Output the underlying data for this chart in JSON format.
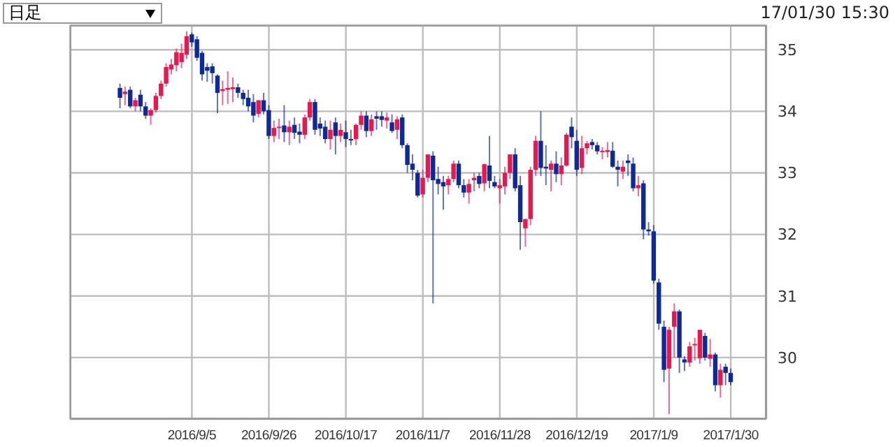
{
  "chart_data": {
    "type": "candlestick",
    "annotations": [
      "日足",
      "17/01/30 15:30"
    ],
    "categories": [
      null,
      null,
      null,
      null,
      null,
      null,
      null,
      null,
      null,
      null,
      null,
      null,
      null,
      null,
      "2016/9/5",
      null,
      null,
      null,
      null,
      null,
      null,
      null,
      null,
      null,
      null,
      null,
      null,
      null,
      null,
      "2016/9/26",
      null,
      null,
      null,
      null,
      null,
      null,
      null,
      null,
      null,
      null,
      null,
      null,
      null,
      null,
      "2016/10/17",
      null,
      null,
      null,
      null,
      null,
      null,
      null,
      null,
      null,
      null,
      null,
      null,
      null,
      null,
      "2016/11/7",
      null,
      null,
      null,
      null,
      null,
      null,
      null,
      null,
      null,
      null,
      null,
      null,
      null,
      null,
      "2016/11/28",
      null,
      null,
      null,
      null,
      null,
      null,
      null,
      null,
      null,
      null,
      null,
      null,
      null,
      null,
      "2016/12/19",
      null,
      null,
      null,
      null,
      null,
      null,
      null,
      null,
      null,
      null,
      null,
      null,
      null,
      null,
      "2017/1/9",
      null,
      null,
      null,
      null,
      null,
      null,
      null,
      null,
      null,
      null,
      null,
      null,
      null,
      null,
      "2017/1/30"
    ],
    "ohlc": [
      [
        34.38,
        34.45,
        34.05,
        34.22
      ],
      [
        34.28,
        34.4,
        34.1,
        34.32
      ],
      [
        34.35,
        34.4,
        34.05,
        34.08
      ],
      [
        34.08,
        34.22,
        34.0,
        34.18
      ],
      [
        34.27,
        34.35,
        34.0,
        34.08
      ],
      [
        34.08,
        34.15,
        33.88,
        33.93
      ],
      [
        33.93,
        34.05,
        33.78,
        34.02
      ],
      [
        34.02,
        34.3,
        33.98,
        34.25
      ],
      [
        34.25,
        34.5,
        34.2,
        34.45
      ],
      [
        34.45,
        34.78,
        34.4,
        34.72
      ],
      [
        34.68,
        34.85,
        34.6,
        34.76
      ],
      [
        34.75,
        35.02,
        34.65,
        34.96
      ],
      [
        34.8,
        35.1,
        34.7,
        34.95
      ],
      [
        34.92,
        35.3,
        34.85,
        35.22
      ],
      [
        35.25,
        35.28,
        35.05,
        35.12
      ],
      [
        35.17,
        35.22,
        34.82,
        34.87
      ],
      [
        34.95,
        34.98,
        34.5,
        34.6
      ],
      [
        34.72,
        34.78,
        34.48,
        34.66
      ],
      [
        34.73,
        34.78,
        34.45,
        34.62
      ],
      [
        34.58,
        34.6,
        33.97,
        34.3
      ],
      [
        34.33,
        34.5,
        34.1,
        34.36
      ],
      [
        34.35,
        34.65,
        34.12,
        34.38
      ],
      [
        34.36,
        34.55,
        34.15,
        34.39
      ],
      [
        34.39,
        34.45,
        34.22,
        34.3
      ],
      [
        34.3,
        34.35,
        34.1,
        34.2
      ],
      [
        34.22,
        34.35,
        34.0,
        34.08
      ],
      [
        34.15,
        34.28,
        33.82,
        33.93
      ],
      [
        33.96,
        34.18,
        33.9,
        34.18
      ],
      [
        34.18,
        34.3,
        33.95,
        34.0
      ],
      [
        34.02,
        34.1,
        33.55,
        33.6
      ],
      [
        33.6,
        33.85,
        33.5,
        33.73
      ],
      [
        33.73,
        33.88,
        33.55,
        33.75
      ],
      [
        33.77,
        34.1,
        33.5,
        33.66
      ],
      [
        33.66,
        33.85,
        33.45,
        33.75
      ],
      [
        33.78,
        33.9,
        33.55,
        33.65
      ],
      [
        33.67,
        33.8,
        33.48,
        33.62
      ],
      [
        33.62,
        33.95,
        33.55,
        33.9
      ],
      [
        33.9,
        34.2,
        33.85,
        34.15
      ],
      [
        34.15,
        34.2,
        33.62,
        33.7
      ],
      [
        33.8,
        33.9,
        33.6,
        33.72
      ],
      [
        33.75,
        33.85,
        33.48,
        33.55
      ],
      [
        33.55,
        33.85,
        33.38,
        33.7
      ],
      [
        33.82,
        33.9,
        33.3,
        33.6
      ],
      [
        33.6,
        33.8,
        33.5,
        33.7
      ],
      [
        33.66,
        33.85,
        33.42,
        33.55
      ],
      [
        33.55,
        33.7,
        33.45,
        33.53
      ],
      [
        33.55,
        33.8,
        33.45,
        33.78
      ],
      [
        33.78,
        34.0,
        33.7,
        33.93
      ],
      [
        33.93,
        34.0,
        33.58,
        33.68
      ],
      [
        33.68,
        33.95,
        33.6,
        33.87
      ],
      [
        33.92,
        34.0,
        33.7,
        33.88
      ],
      [
        33.92,
        34.0,
        33.75,
        33.86
      ],
      [
        33.85,
        33.98,
        33.72,
        33.9
      ],
      [
        33.82,
        33.95,
        33.65,
        33.68
      ],
      [
        33.7,
        33.92,
        33.55,
        33.87
      ],
      [
        33.9,
        33.95,
        33.4,
        33.45
      ],
      [
        33.45,
        33.48,
        33.0,
        33.13
      ],
      [
        33.15,
        33.3,
        32.88,
        33.05
      ],
      [
        33.0,
        33.05,
        32.6,
        32.63
      ],
      [
        32.65,
        33.05,
        32.6,
        32.92
      ],
      [
        32.92,
        33.3,
        32.85,
        33.3
      ],
      [
        33.28,
        33.35,
        30.88,
        32.88
      ],
      [
        32.9,
        33.1,
        32.65,
        32.82
      ],
      [
        32.85,
        32.95,
        32.4,
        32.78
      ],
      [
        32.8,
        32.95,
        32.65,
        32.9
      ],
      [
        32.9,
        33.2,
        32.85,
        33.15
      ],
      [
        33.15,
        33.2,
        32.75,
        32.8
      ],
      [
        32.8,
        32.9,
        32.6,
        32.68
      ],
      [
        32.68,
        32.9,
        32.5,
        32.82
      ],
      [
        32.88,
        33.0,
        32.7,
        32.92
      ],
      [
        32.95,
        33.0,
        32.75,
        32.82
      ],
      [
        32.83,
        33.15,
        32.7,
        33.14
      ],
      [
        33.12,
        33.6,
        32.75,
        32.87
      ],
      [
        32.85,
        32.95,
        32.75,
        32.78
      ],
      [
        32.75,
        32.9,
        32.5,
        32.8
      ],
      [
        32.78,
        33.1,
        32.65,
        33.0
      ],
      [
        33.0,
        33.3,
        32.9,
        33.3
      ],
      [
        33.3,
        33.4,
        32.7,
        32.75
      ],
      [
        32.8,
        32.95,
        31.75,
        32.2
      ],
      [
        32.1,
        32.25,
        31.8,
        32.25
      ],
      [
        32.25,
        33.1,
        32.15,
        33.05
      ],
      [
        33.05,
        33.6,
        32.95,
        33.52
      ],
      [
        33.52,
        34.0,
        32.95,
        33.08
      ],
      [
        33.1,
        33.45,
        32.8,
        33.07
      ],
      [
        33.05,
        33.2,
        32.7,
        33.15
      ],
      [
        33.15,
        33.35,
        32.85,
        32.98
      ],
      [
        32.98,
        33.25,
        32.8,
        33.12
      ],
      [
        33.12,
        33.65,
        33.1,
        33.62
      ],
      [
        33.75,
        33.9,
        33.4,
        33.58
      ],
      [
        33.52,
        33.7,
        32.95,
        33.05
      ],
      [
        33.08,
        33.6,
        32.98,
        33.4
      ],
      [
        33.4,
        33.52,
        33.3,
        33.48
      ],
      [
        33.5,
        33.55,
        33.38,
        33.45
      ],
      [
        33.45,
        33.5,
        33.3,
        33.35
      ],
      [
        33.35,
        33.42,
        33.22,
        33.36
      ],
      [
        33.34,
        33.5,
        33.25,
        33.37
      ],
      [
        33.36,
        33.5,
        33.08,
        33.1
      ],
      [
        33.1,
        33.2,
        32.78,
        33.05
      ],
      [
        33.02,
        33.2,
        32.9,
        33.1
      ],
      [
        33.2,
        33.3,
        32.95,
        33.16
      ],
      [
        33.15,
        33.25,
        32.7,
        32.75
      ],
      [
        32.75,
        32.95,
        32.62,
        32.8
      ],
      [
        32.83,
        32.88,
        31.92,
        32.08
      ],
      [
        32.08,
        32.2,
        31.98,
        32.05
      ],
      [
        32.05,
        32.15,
        31.2,
        31.25
      ],
      [
        31.22,
        31.28,
        30.45,
        30.55
      ],
      [
        30.5,
        30.6,
        29.6,
        29.8
      ],
      [
        29.82,
        30.5,
        29.08,
        30.45
      ],
      [
        30.5,
        30.88,
        30.0,
        30.75
      ],
      [
        30.75,
        30.78,
        29.75,
        30.0
      ],
      [
        29.97,
        30.02,
        29.78,
        29.92
      ],
      [
        29.92,
        30.25,
        29.85,
        30.18
      ],
      [
        30.2,
        30.32,
        29.95,
        30.22
      ],
      [
        29.99,
        30.45,
        29.9,
        30.45
      ],
      [
        30.35,
        30.4,
        29.95,
        30.0
      ],
      [
        29.98,
        30.3,
        29.85,
        30.05
      ],
      [
        30.05,
        30.08,
        29.45,
        29.55
      ],
      [
        29.55,
        29.9,
        29.35,
        29.8
      ],
      [
        29.85,
        29.9,
        29.55,
        29.75
      ],
      [
        29.75,
        29.82,
        29.55,
        29.6
      ]
    ],
    "colors": [
      "#0d2a96",
      "#e8174d",
      "#0d2a96",
      "#e8174d",
      "#0d2a96",
      "#0d2a96",
      "#e8174d",
      "#e8174d",
      "#e8174d",
      "#e8174d",
      "#e8174d",
      "#e8174d",
      "#e8174d",
      "#e8174d",
      "#0d2a96",
      "#0d2a96",
      "#0d2a96",
      "#0d2a96",
      "#0d2a96",
      "#0d2a96",
      "#e8174d",
      "#e8174d",
      "#e8174d",
      "#0d2a96",
      "#0d2a96",
      "#0d2a96",
      "#0d2a96",
      "#e8174d",
      "#0d2a96",
      "#0d2a96",
      "#e8174d",
      "#e8174d",
      "#0d2a96",
      "#e8174d",
      "#0d2a96",
      "#0d2a96",
      "#e8174d",
      "#e8174d",
      "#0d2a96",
      "#0d2a96",
      "#0d2a96",
      "#e8174d",
      "#0d2a96",
      "#e8174d",
      "#0d2a96",
      "#0d2a96",
      "#e8174d",
      "#e8174d",
      "#0d2a96",
      "#e8174d",
      "#0d2a96",
      "#0d2a96",
      "#e8174d",
      "#0d2a96",
      "#e8174d",
      "#0d2a96",
      "#0d2a96",
      "#0d2a96",
      "#0d2a96",
      "#e8174d",
      "#e8174d",
      "#0d2a96",
      "#0d2a96",
      "#0d2a96",
      "#e8174d",
      "#e8174d",
      "#0d2a96",
      "#0d2a96",
      "#e8174d",
      "#e8174d",
      "#0d2a96",
      "#e8174d",
      "#0d2a96",
      "#0d2a96",
      "#e8174d",
      "#e8174d",
      "#e8174d",
      "#0d2a96",
      "#0d2a96",
      "#e8174d",
      "#e8174d",
      "#e8174d",
      "#0d2a96",
      "#0d2a96",
      "#e8174d",
      "#0d2a96",
      "#e8174d",
      "#e8174d",
      "#0d2a96",
      "#0d2a96",
      "#e8174d",
      "#e8174d",
      "#0d2a96",
      "#0d2a96",
      "#e8174d",
      "#e8174d",
      "#0d2a96",
      "#0d2a96",
      "#e8174d",
      "#0d2a96",
      "#0d2a96",
      "#e8174d",
      "#0d2a96",
      "#0d2a96",
      "#0d2a96",
      "#0d2a96",
      "#0d2a96",
      "#e8174d",
      "#e8174d",
      "#0d2a96",
      "#0d2a96",
      "#e8174d",
      "#e8174d",
      "#e8174d",
      "#0d2a96",
      "#e8174d",
      "#0d2a96",
      "#e8174d",
      "#0d2a96",
      "#0d2a96"
    ],
    "ylim": [
      29,
      35.4
    ],
    "yticks": [
      30,
      31,
      32,
      33,
      34,
      35
    ],
    "grid": true
  }
}
